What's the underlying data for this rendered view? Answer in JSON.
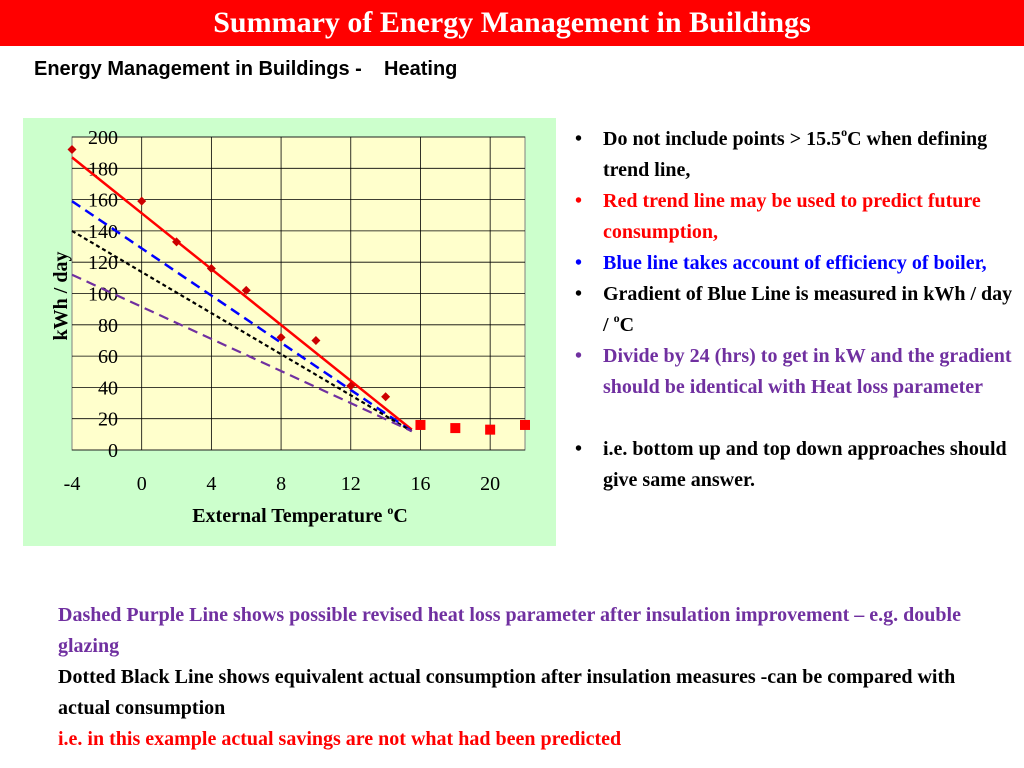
{
  "title": "Summary of Energy Management in Buildings",
  "subtitle": "Energy Management in Buildings -    Heating",
  "colors": {
    "title_bg": "#ff0000",
    "chart_bg": "#ccffcc",
    "plot_bg": "#ffffcc",
    "red": "#ff0000",
    "blue": "#0000ff",
    "purple": "#7030a0",
    "black": "#000000"
  },
  "bullets": [
    {
      "text": "Do not include points > 15.5",
      "sup": "o",
      "suffix": "C when defining trend line,",
      "color": "#000000"
    },
    {
      "text": "Red trend line may be used to predict future consumption,",
      "sup": "",
      "suffix": "",
      "color": "#ff0000"
    },
    {
      "text": "Blue line takes account of efficiency of boiler,",
      "sup": "",
      "suffix": "",
      "color": "#0000ff"
    },
    {
      "text": "Gradient of Blue Line is measured in   kWh / day / ",
      "sup": "o",
      "suffix": "C",
      "color": "#000000"
    },
    {
      "text": "Divide by 24 (hrs) to get in kW and the gradient should be identical with Heat loss parameter",
      "sup": "",
      "suffix": "",
      "color": "#7030a0"
    },
    {
      "text": "i.e. bottom up and top down approaches should give same answer.",
      "sup": "",
      "suffix": "",
      "color": "#000000"
    }
  ],
  "bottom_lines": [
    {
      "text": "Dashed Purple Line shows possible revised heat loss parameter after insulation improvement – e.g. double glazing",
      "color": "#7030a0"
    },
    {
      "text": "Dotted Black Line shows equivalent actual consumption after insulation measures -can be compared with actual consumption",
      "color": "#000000"
    },
    {
      "text": "i.e. in this example actual savings are not what had been predicted",
      "color": "#ff0000"
    }
  ],
  "chart_data": {
    "type": "scatter",
    "title": "",
    "xlabel": "External Temperature",
    "xlabel_sup": "o",
    "xlabel_suffix": "C",
    "ylabel": "kWh / day",
    "xlim": [
      -4,
      22
    ],
    "ylim": [
      0,
      200
    ],
    "xticks": [
      -4,
      0,
      4,
      8,
      12,
      16,
      20
    ],
    "yticks": [
      0,
      20,
      40,
      60,
      80,
      100,
      120,
      140,
      160,
      180,
      200
    ],
    "grid": true,
    "series": [
      {
        "marker": "diamond",
        "color": "#cc0000",
        "points": [
          [
            -4,
            192
          ],
          [
            0,
            159
          ],
          [
            2,
            133
          ],
          [
            4,
            116
          ],
          [
            6,
            102
          ],
          [
            8,
            72
          ],
          [
            10,
            70
          ],
          [
            12,
            41
          ],
          [
            14,
            34
          ]
        ]
      },
      {
        "marker": "square",
        "color": "#ff0000",
        "points": [
          [
            16,
            16
          ],
          [
            18,
            14
          ],
          [
            20,
            13
          ],
          [
            22,
            16
          ]
        ]
      }
    ],
    "lines": [
      {
        "style": "solid",
        "color": "#ff0000",
        "width": 2.5,
        "from": [
          -4,
          187
        ],
        "to": [
          15.5,
          13
        ]
      },
      {
        "style": "dashed",
        "color": "#0000ff",
        "width": 2.5,
        "from": [
          -4,
          159
        ],
        "to": [
          15.5,
          12
        ]
      },
      {
        "style": "dotted",
        "color": "#000000",
        "width": 2.2,
        "from": [
          -4,
          140
        ],
        "to": [
          15.5,
          12
        ]
      },
      {
        "style": "dashed",
        "color": "#7030a0",
        "width": 2.2,
        "from": [
          -4,
          112
        ],
        "to": [
          15.5,
          12
        ]
      }
    ]
  }
}
